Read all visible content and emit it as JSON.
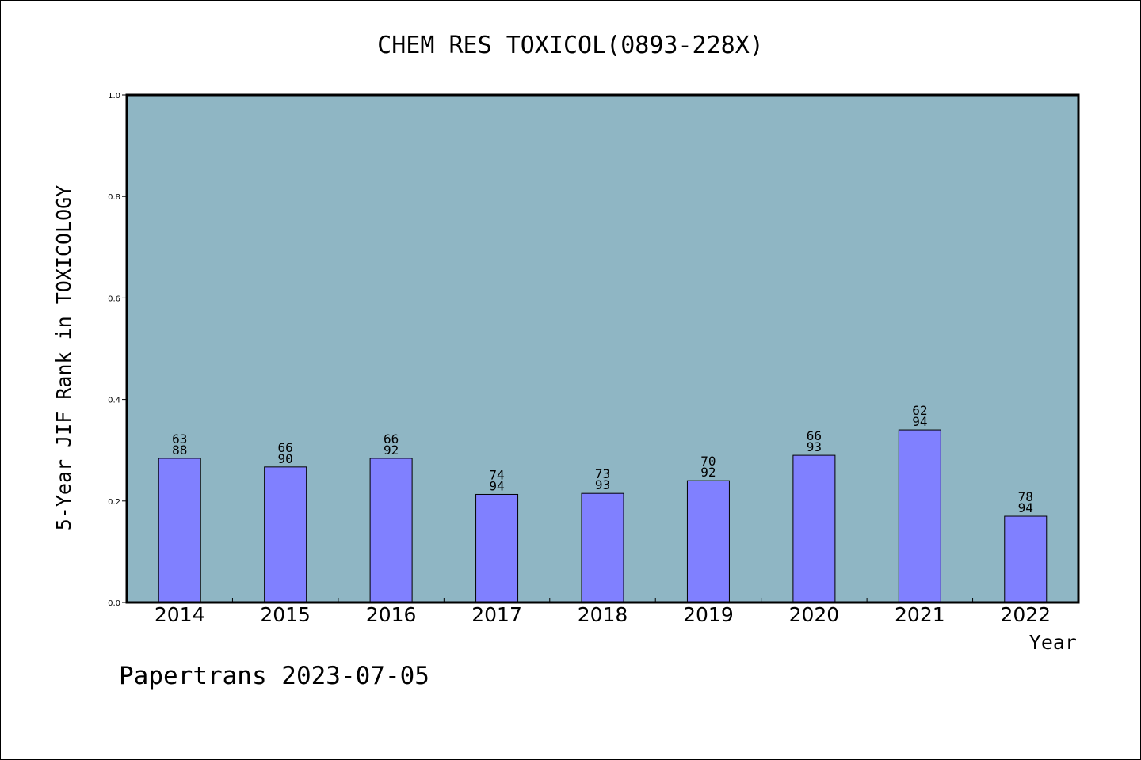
{
  "colors": {
    "plot_background": "#8fb6c4",
    "bar_fill": "#8080ff",
    "bar_stroke": "#000000"
  },
  "chart_data": {
    "type": "bar",
    "title": "CHEM RES TOXICOL(0893-228X)",
    "xlabel": "Year",
    "ylabel": "5-Year JIF Rank in TOXICOLOGY",
    "ylim": [
      0,
      1.0
    ],
    "yticks": [
      "0.0",
      "0.2",
      "0.4",
      "0.6",
      "0.8",
      "1.0"
    ],
    "categories": [
      "2014",
      "2015",
      "2016",
      "2017",
      "2018",
      "2019",
      "2020",
      "2021",
      "2022"
    ],
    "values": [
      0.284,
      0.267,
      0.284,
      0.213,
      0.215,
      0.24,
      0.29,
      0.34,
      0.17
    ],
    "rank": [
      "63",
      "66",
      "66",
      "74",
      "73",
      "70",
      "66",
      "62",
      "78"
    ],
    "total": [
      "88",
      "90",
      "92",
      "94",
      "93",
      "92",
      "93",
      "94",
      "94"
    ],
    "grid": false,
    "legend": "none"
  },
  "footer": {
    "text": "Papertrans 2023-07-05"
  }
}
